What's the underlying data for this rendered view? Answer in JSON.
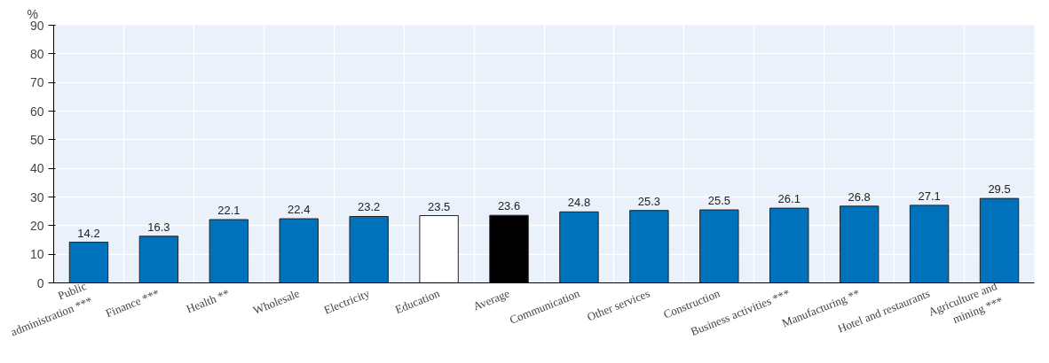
{
  "chart_data": {
    "type": "bar",
    "ylabel": "%",
    "categories": [
      "Public\nadministration ***",
      "Finance ***",
      "Health **",
      "Wholesale",
      "Electricity",
      "Education",
      "Average",
      "Communication",
      "Other services",
      "Construction",
      "Business activities ***",
      "Manufacturing **",
      "Hotel and restaurants",
      "Agriculture and\nmining ***"
    ],
    "values": [
      14.2,
      16.3,
      22.1,
      22.4,
      23.2,
      23.5,
      23.6,
      24.8,
      25.3,
      25.5,
      26.1,
      26.8,
      27.1,
      29.5
    ],
    "colors": [
      "#0072bc",
      "#0072bc",
      "#0072bc",
      "#0072bc",
      "#0072bc",
      "#ffffff",
      "#000000",
      "#0072bc",
      "#0072bc",
      "#0072bc",
      "#0072bc",
      "#0072bc",
      "#0072bc",
      "#0072bc"
    ],
    "ylim": [
      0,
      90
    ],
    "yticks": [
      0,
      10,
      20,
      30,
      40,
      50,
      60,
      70,
      80,
      90
    ],
    "grid": true,
    "data_labels": true
  }
}
